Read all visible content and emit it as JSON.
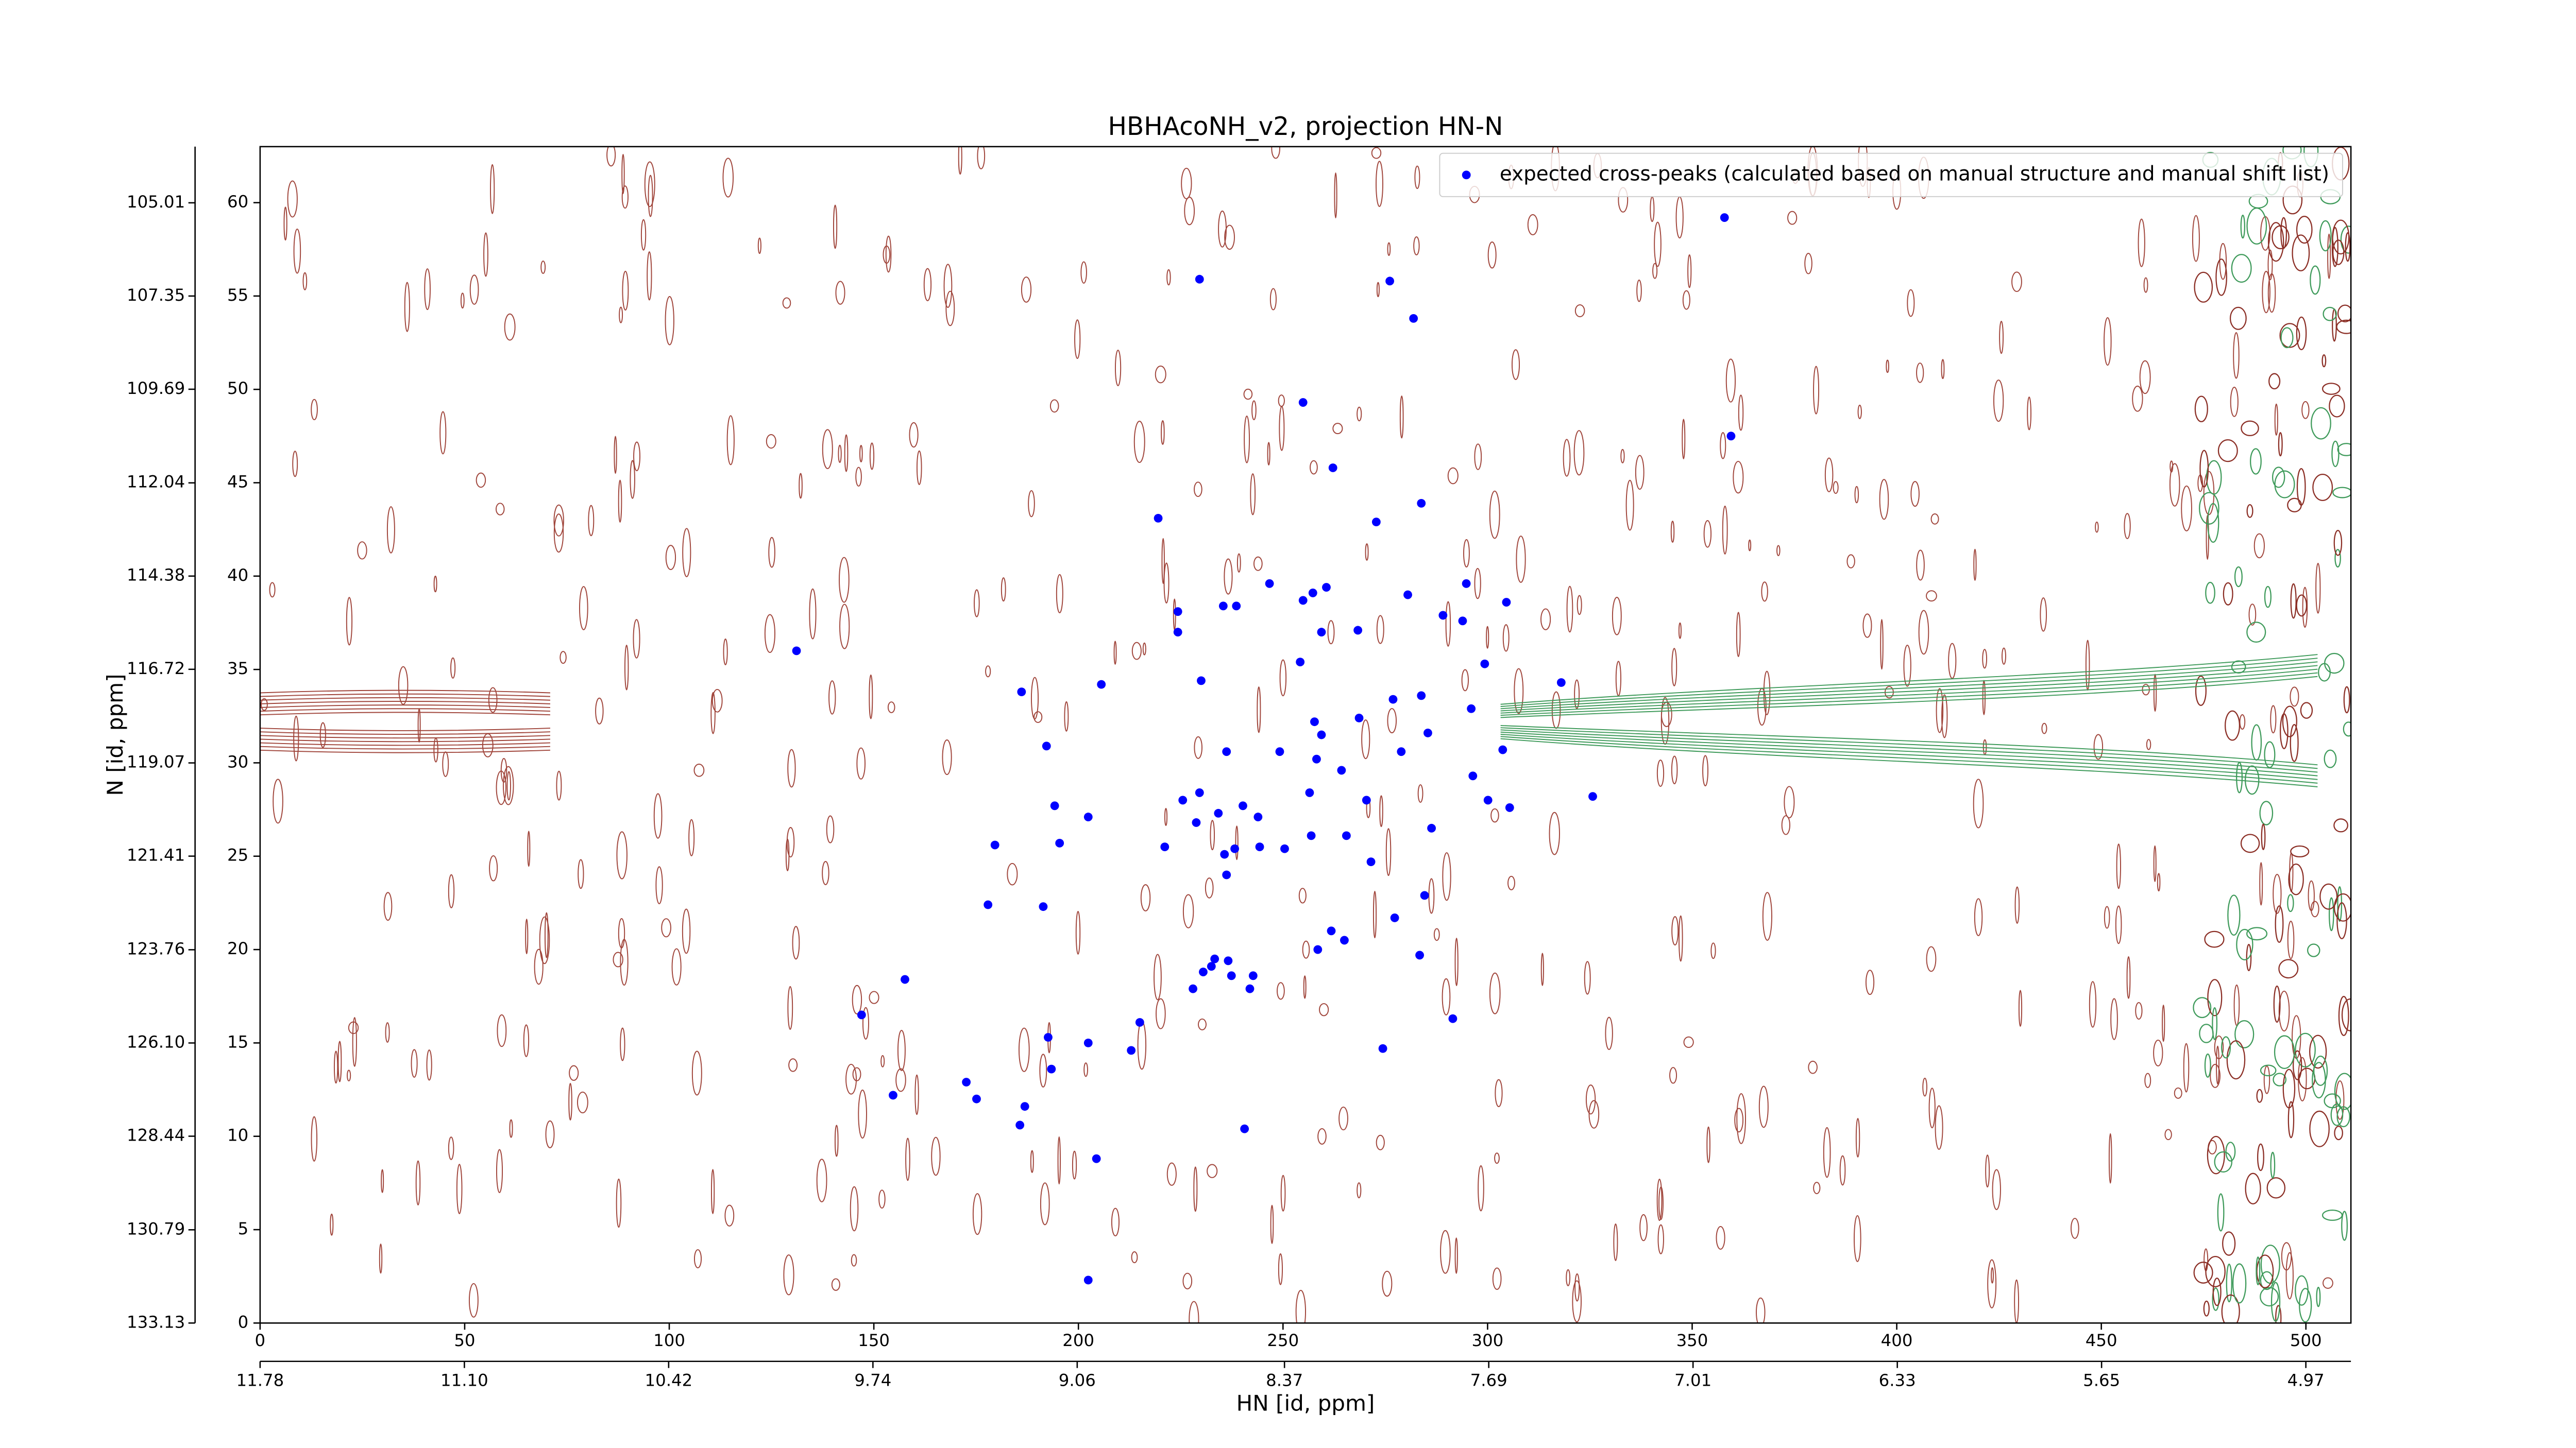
{
  "chart_data": {
    "type": "scatter",
    "title": "HBHAcoNH_v2, projection HN-N",
    "xlabel": "HN [id, ppm]",
    "ylabel": "N [id, ppm]",
    "xlim": [
      0,
      511
    ],
    "ylim": [
      0,
      63
    ],
    "xticks": [
      0,
      50,
      100,
      150,
      200,
      250,
      300,
      350,
      400,
      450,
      500
    ],
    "yticks": [
      0,
      5,
      10,
      15,
      20,
      25,
      30,
      35,
      40,
      45,
      50,
      55,
      60
    ],
    "x2lim": [
      11.78,
      4.82
    ],
    "x2ticks": [
      11.78,
      {
        "value": 11.1,
        "label": "11.10"
      },
      10.42,
      9.74,
      9.06,
      8.37,
      7.69,
      7.01,
      6.33,
      5.65,
      4.97
    ],
    "y2lim": [
      133.13,
      103.6
    ],
    "y2ticks": [
      133.13,
      130.79,
      128.44,
      {
        "value": 126.1,
        "label": "126.10"
      },
      123.76,
      121.41,
      119.07,
      116.72,
      114.38,
      112.04,
      109.69,
      107.35,
      105.01
    ],
    "legend": "upper right",
    "x": [
      357.9,
      229.6,
      276.1,
      281.9,
      254.9,
      359.5,
      262.2,
      219.5,
      272.8,
      283.8,
      235.4,
      238.6,
      246.7,
      224.3,
      224.3,
      254.9,
      257.3,
      260.6,
      259.4,
      268.3,
      280.5,
      294.8,
      289.1,
      293.9,
      304.6,
      131.1,
      254.2,
      299.3,
      186.1,
      205.6,
      230.0,
      318.0,
      276.9,
      283.8,
      296.0,
      257.7,
      268.6,
      259.4,
      192.2,
      236.2,
      249.2,
      278.9,
      285.4,
      303.7,
      258.2,
      264.3,
      296.4,
      325.7,
      229.6,
      225.5,
      256.5,
      270.4,
      300.1,
      305.4,
      194.2,
      202.4,
      234.2,
      240.2,
      243.9,
      228.8,
      286.3,
      265.5,
      179.6,
      195.4,
      221.1,
      238.2,
      244.3,
      250.4,
      256.9,
      235.7,
      271.5,
      236.2,
      284.6,
      177.9,
      191.4,
      277.3,
      261.8,
      265.0,
      258.5,
      283.4,
      233.3,
      236.6,
      230.5,
      232.5,
      237.4,
      242.7,
      241.9,
      228.0,
      157.6,
      147.0,
      215.0,
      291.5,
      192.6,
      202.4,
      212.9,
      274.4,
      193.4,
      172.6,
      154.7,
      175.1,
      186.9,
      185.7,
      240.6,
      204.4,
      202.4
    ],
    "series": [
      {
        "name": "expected cross-peaks (calculated based on manual structure and manual shift list)",
        "color": "#0000ff",
        "values": [
          59.2,
          55.9,
          55.8,
          53.8,
          49.3,
          47.5,
          45.8,
          43.1,
          42.9,
          43.9,
          38.4,
          38.4,
          39.6,
          38.1,
          37.0,
          38.7,
          39.1,
          39.4,
          37.0,
          37.1,
          39.0,
          39.6,
          37.9,
          37.6,
          38.6,
          36.0,
          35.4,
          35.3,
          33.8,
          34.2,
          34.4,
          34.3,
          33.4,
          33.6,
          32.9,
          32.2,
          32.4,
          31.5,
          30.9,
          30.6,
          30.6,
          30.6,
          31.6,
          30.7,
          30.2,
          29.6,
          29.3,
          28.2,
          28.4,
          28.0,
          28.4,
          28.0,
          28.0,
          27.6,
          27.7,
          27.1,
          27.3,
          27.7,
          27.1,
          26.8,
          26.5,
          26.1,
          25.6,
          25.7,
          25.5,
          25.4,
          25.5,
          25.4,
          26.1,
          25.1,
          24.7,
          24.0,
          22.9,
          22.4,
          22.3,
          21.7,
          21.0,
          20.5,
          20.0,
          19.7,
          19.5,
          19.4,
          18.8,
          19.1,
          18.6,
          18.6,
          17.9,
          17.9,
          18.4,
          16.5,
          16.1,
          16.3,
          15.3,
          15.0,
          14.6,
          14.7,
          13.6,
          12.9,
          12.2,
          12.0,
          11.6,
          10.6,
          10.4,
          8.8,
          2.3
        ]
      }
    ]
  }
}
